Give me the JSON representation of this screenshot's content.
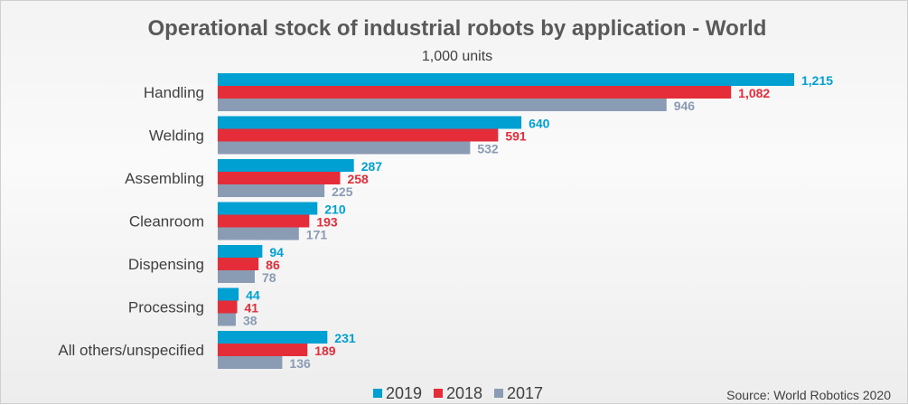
{
  "chart_data": {
    "type": "bar",
    "orientation": "horizontal",
    "title": "Operational stock of industrial robots by application - World",
    "subtitle": "1,000 units",
    "categories": [
      "Handling",
      "Welding",
      "Assembling",
      "Cleanroom",
      "Dispensing",
      "Processing",
      "All others/unspecified"
    ],
    "series": [
      {
        "name": "2019",
        "color": "#00a0d2",
        "values": [
          1215,
          640,
          287,
          210,
          94,
          44,
          231
        ],
        "labels": [
          "1,215",
          "640",
          "287",
          "210",
          "94",
          "44",
          "231"
        ]
      },
      {
        "name": "2018",
        "color": "#e52d3a",
        "values": [
          1082,
          591,
          258,
          193,
          86,
          41,
          189
        ],
        "labels": [
          "1,082",
          "591",
          "258",
          "193",
          "86",
          "41",
          "189"
        ]
      },
      {
        "name": "2017",
        "color": "#8a9bb4",
        "values": [
          946,
          532,
          225,
          171,
          78,
          38,
          136
        ],
        "labels": [
          "946",
          "532",
          "225",
          "171",
          "78",
          "38",
          "136"
        ]
      }
    ],
    "xlim": [
      0,
      1400
    ],
    "grid": false,
    "legend": "bottom",
    "source": "Source: World Robotics 2020"
  }
}
